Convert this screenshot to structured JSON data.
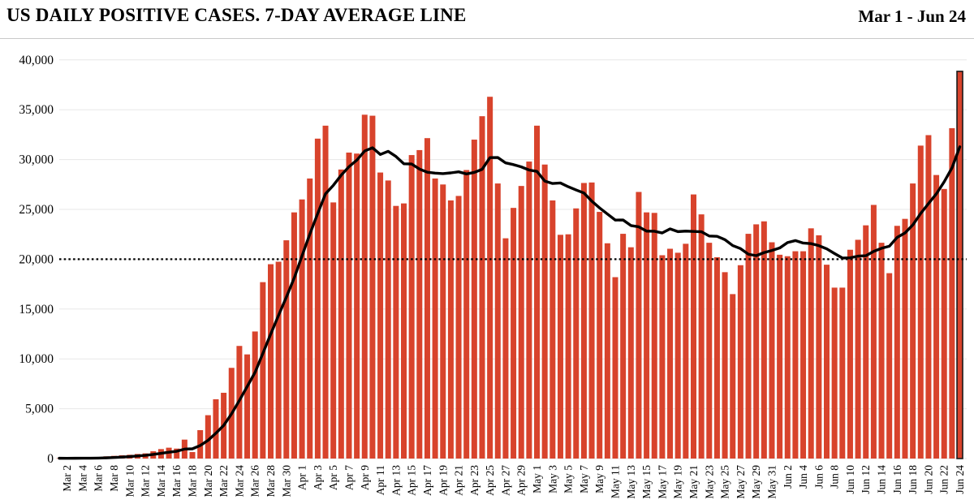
{
  "header": {
    "title": "US DAILY POSITIVE CASES. 7-DAY AVERAGE LINE",
    "date_range": "Mar 1 - Jun 24"
  },
  "colors": {
    "bar": "#d8432c",
    "avg_line": "#000000",
    "reference_line": "#000000",
    "gridline": "#e7e7e7",
    "highlight_outline": "#1a1a1a",
    "text": "#000000",
    "background": "#ffffff"
  },
  "chart_data": {
    "type": "bar",
    "title": "US DAILY POSITIVE CASES. 7-DAY AVERAGE LINE",
    "subtitle": "Mar 1 - Jun 24",
    "xlabel": "",
    "ylabel": "",
    "ylim": [
      0,
      40000
    ],
    "yticks": [
      0,
      5000,
      10000,
      15000,
      20000,
      25000,
      30000,
      35000,
      40000
    ],
    "ytick_labels": [
      "0",
      "5,000",
      "10,000",
      "15,000",
      "20,000",
      "25,000",
      "30,000",
      "35,000",
      "40,000"
    ],
    "grid": "horizontal",
    "legend": "none",
    "x_tick_step": 2,
    "x_tick_start_index": 1,
    "highlight_last_bar": true,
    "reference_line": {
      "value": 20000,
      "style": "dotted",
      "color": "#000000"
    },
    "categories": [
      "Mar 1",
      "Mar 2",
      "Mar 3",
      "Mar 4",
      "Mar 5",
      "Mar 6",
      "Mar 7",
      "Mar 8",
      "Mar 9",
      "Mar 10",
      "Mar 11",
      "Mar 12",
      "Mar 13",
      "Mar 14",
      "Mar 15",
      "Mar 16",
      "Mar 17",
      "Mar 18",
      "Mar 19",
      "Mar 20",
      "Mar 21",
      "Mar 22",
      "Mar 23",
      "Mar 24",
      "Mar 25",
      "Mar 26",
      "Mar 27",
      "Mar 28",
      "Mar 29",
      "Mar 30",
      "Mar 31",
      "Apr 1",
      "Apr 2",
      "Apr 3",
      "Apr 4",
      "Apr 5",
      "Apr 6",
      "Apr 7",
      "Apr 8",
      "Apr 9",
      "Apr 10",
      "Apr 11",
      "Apr 12",
      "Apr 13",
      "Apr 14",
      "Apr 15",
      "Apr 16",
      "Apr 17",
      "Apr 18",
      "Apr 19",
      "Apr 20",
      "Apr 21",
      "Apr 22",
      "Apr 23",
      "Apr 24",
      "Apr 25",
      "Apr 26",
      "Apr 27",
      "Apr 28",
      "Apr 29",
      "Apr 30",
      "May 1",
      "May 2",
      "May 3",
      "May 4",
      "May 5",
      "May 6",
      "May 7",
      "May 8",
      "May 9",
      "May 10",
      "May 11",
      "May 12",
      "May 13",
      "May 14",
      "May 15",
      "May 16",
      "May 17",
      "May 18",
      "May 19",
      "May 20",
      "May 21",
      "May 22",
      "May 23",
      "May 24",
      "May 25",
      "May 26",
      "May 27",
      "May 28",
      "May 29",
      "May 30",
      "May 31",
      "Jun 1",
      "Jun 2",
      "Jun 3",
      "Jun 4",
      "Jun 5",
      "Jun 6",
      "Jun 7",
      "Jun 8",
      "Jun 9",
      "Jun 10",
      "Jun 11",
      "Jun 12",
      "Jun 13",
      "Jun 14",
      "Jun 15",
      "Jun 16",
      "Jun 17",
      "Jun 18",
      "Jun 19",
      "Jun 20",
      "Jun 21",
      "Jun 22",
      "Jun 23",
      "Jun 24"
    ],
    "series": [
      {
        "name": "Daily positive cases",
        "type": "bar",
        "color": "#d8432c",
        "values": [
          30,
          25,
          35,
          45,
          60,
          90,
          220,
          270,
          330,
          380,
          460,
          520,
          730,
          950,
          1090,
          1000,
          1900,
          650,
          2850,
          4350,
          5950,
          6600,
          9100,
          11300,
          10450,
          12750,
          17700,
          19500,
          19750,
          21900,
          24700,
          26000,
          28100,
          32100,
          33400,
          25700,
          29000,
          30700,
          30600,
          34500,
          34400,
          28700,
          27900,
          25350,
          25600,
          30450,
          30950,
          32150,
          28100,
          27500,
          25900,
          26350,
          28950,
          32000,
          34350,
          36300,
          27600,
          22100,
          25150,
          27350,
          29800,
          33400,
          29500,
          25900,
          22450,
          22500,
          25100,
          27650,
          27700,
          24750,
          21600,
          18200,
          22550,
          21200,
          26750,
          24700,
          24650,
          20400,
          21050,
          20650,
          21550,
          26500,
          24500,
          21650,
          20200,
          18700,
          16500,
          19400,
          22550,
          23500,
          23800,
          21700,
          20450,
          20300,
          20800,
          20800,
          23100,
          22400,
          19450,
          17150,
          17150,
          20950,
          21950,
          23400,
          25450,
          21650,
          18600,
          23350,
          24050,
          27600,
          31400,
          32450,
          28450,
          27050,
          33150,
          38850
        ]
      },
      {
        "name": "7-day average",
        "type": "line",
        "color": "#000000",
        "values_derived": true,
        "derived_from": "trailing 7-day mean of Daily positive cases"
      }
    ]
  }
}
